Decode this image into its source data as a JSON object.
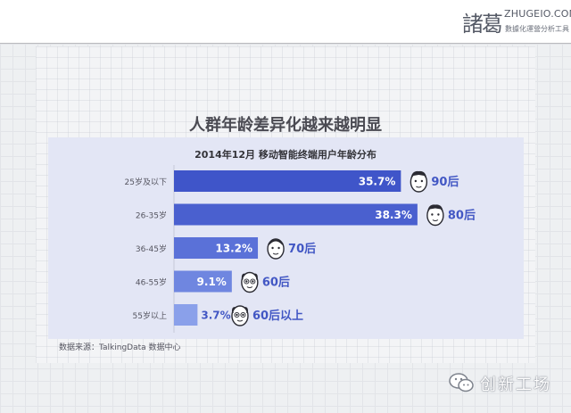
{
  "header": {
    "logo_cn": "諸葛",
    "logo_en": "ZHUGEIO.COM",
    "logo_sub": "數據化運營分析工具"
  },
  "slide": {
    "title": "人群年龄差异化越来越明显",
    "source": "数据来源：TalkingData 数据中心"
  },
  "chart_data": {
    "type": "bar",
    "orientation": "horizontal",
    "title": "2014年12月 移动智能终端用户年龄分布",
    "categories": [
      "25岁及以下",
      "26-35岁",
      "36-45岁",
      "46-55岁",
      "55岁以上"
    ],
    "values": [
      35.7,
      38.3,
      13.2,
      9.1,
      3.7
    ],
    "value_labels": [
      "35.7%",
      "38.3%",
      "13.2%",
      "9.1%",
      "3.7%"
    ],
    "generation_labels": [
      "90后",
      "80后",
      "70后",
      "60后",
      "60后以上"
    ],
    "xlim": [
      0,
      40
    ],
    "grid": false,
    "colors": [
      "#3f55c9",
      "#4a60cf",
      "#5a71d8",
      "#6f86e0",
      "#8aa0ea"
    ],
    "label_color": "#4257c4"
  },
  "watermark": {
    "text": "创新工场",
    "icon": "wechat-icon"
  }
}
